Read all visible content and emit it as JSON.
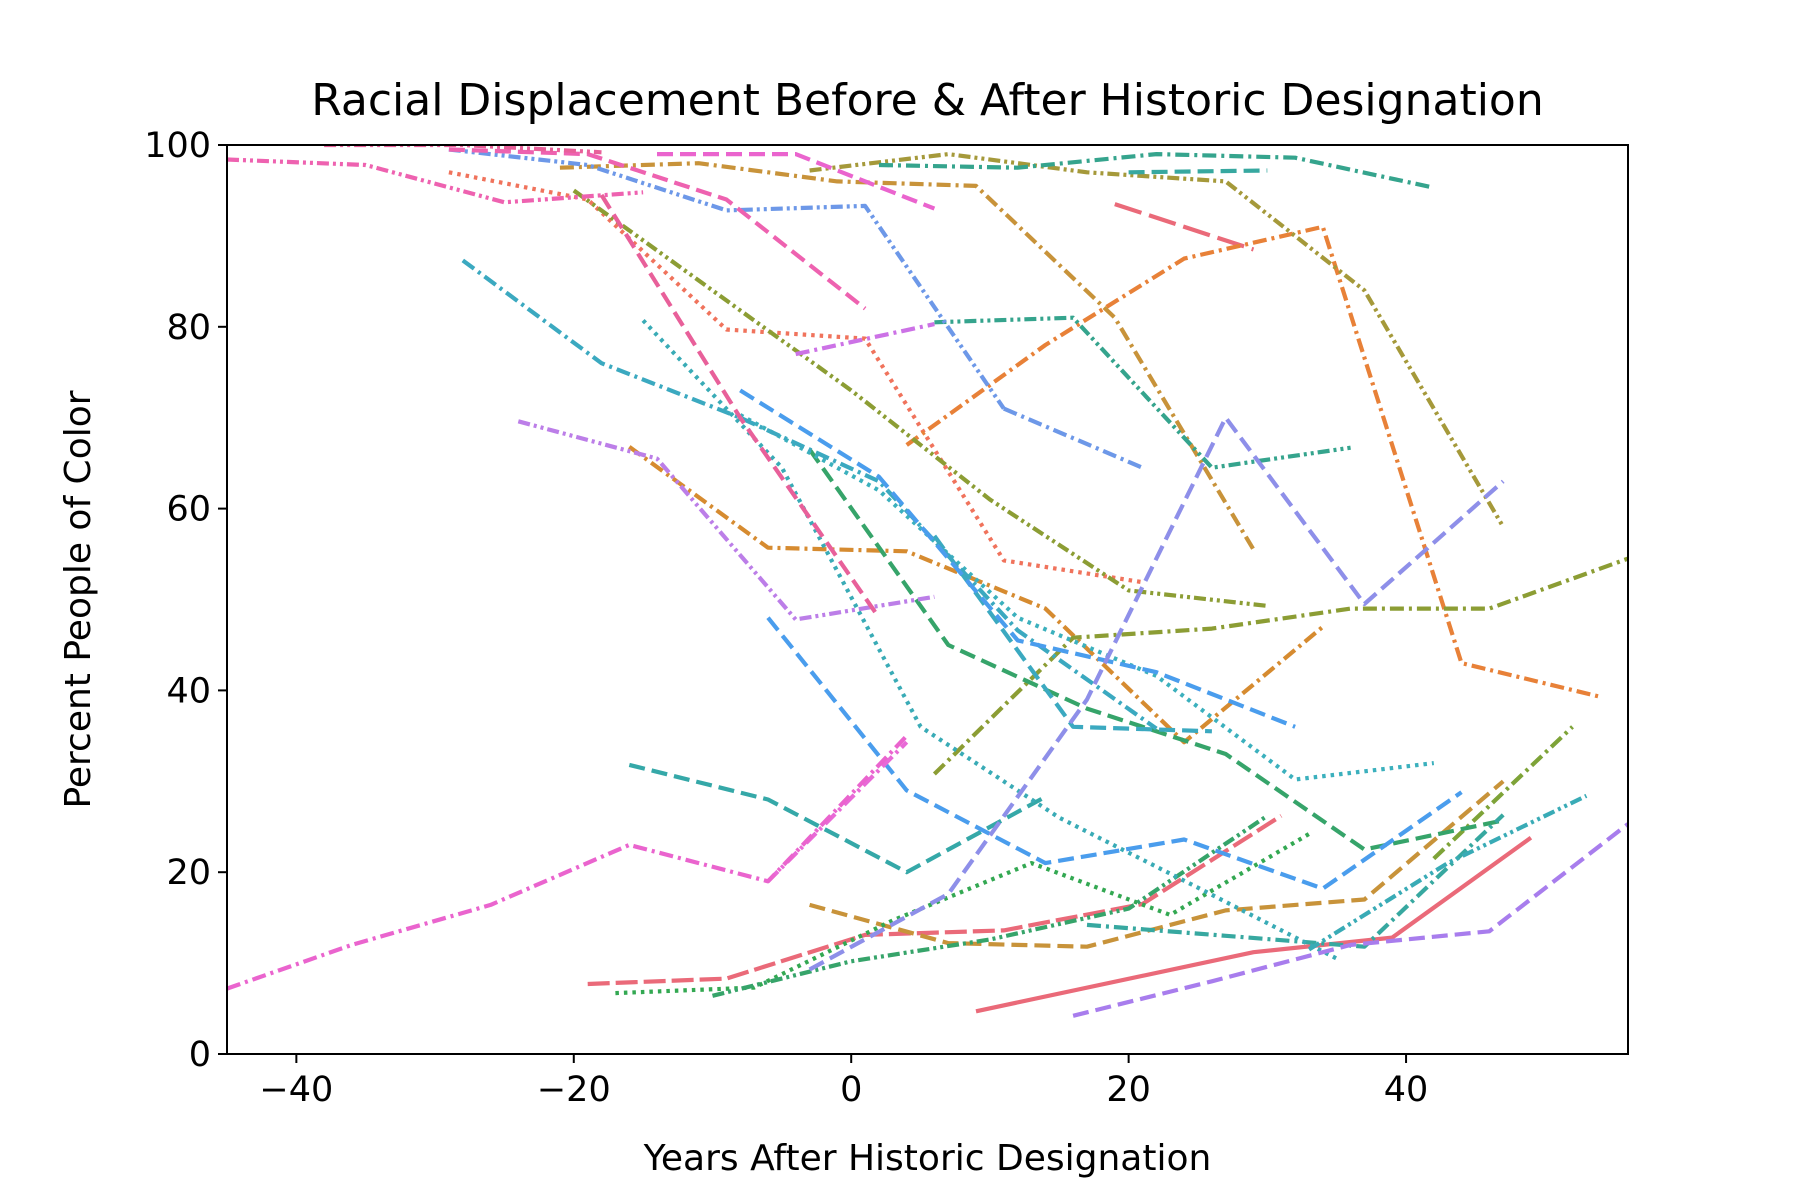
{
  "chart_data": {
    "type": "line",
    "title": "Racial Displacement Before & After Historic Designation",
    "xlabel": "Years After Historic Designation",
    "ylabel": "Percent People of Color",
    "xlim": [
      -45,
      56
    ],
    "ylim": [
      0,
      100
    ],
    "xticks": [
      -40,
      -20,
      0,
      20,
      40
    ],
    "xtick_labels": [
      "−40",
      "−20",
      "0",
      "20",
      "40"
    ],
    "yticks": [
      0,
      20,
      40,
      60,
      80,
      100
    ],
    "ytick_labels": [
      "0",
      "20",
      "40",
      "60",
      "80",
      "100"
    ],
    "grid": false,
    "legend": "none",
    "series": [
      {
        "color": "#ea6a79",
        "dash": "solid",
        "x": [
          9,
          29,
          39,
          49
        ],
        "y": [
          4.7,
          11.2,
          12.8,
          23.8
        ]
      },
      {
        "color": "#ea6a79",
        "dash": "long",
        "x": [
          -19,
          -9,
          1,
          11,
          21,
          31
        ],
        "y": [
          7.7,
          8.3,
          13.1,
          13.6,
          16.5,
          26.2
        ]
      },
      {
        "color": "#ea6a79",
        "dash": "longdash",
        "x": [
          19,
          29
        ],
        "y": [
          93.5,
          88.5
        ]
      },
      {
        "color": "#f0735c",
        "dash": "dot",
        "x": [
          -29,
          -19,
          -9,
          1,
          11,
          21
        ],
        "y": [
          97.0,
          94.0,
          79.7,
          78.7,
          54.3,
          51.9
        ]
      },
      {
        "color": "#e88138",
        "dash": "dashdot",
        "x": [
          4,
          14,
          24,
          34,
          44,
          54
        ],
        "y": [
          67.0,
          78.0,
          87.5,
          91.0,
          43.0,
          39.3
        ]
      },
      {
        "color": "#d68b30",
        "dash": "dashdot",
        "x": [
          -16,
          -6,
          4,
          14,
          24,
          34
        ],
        "y": [
          66.8,
          55.7,
          55.3,
          49.0,
          34.3,
          47.0
        ]
      },
      {
        "color": "#c8933a",
        "dash": "dash",
        "x": [
          -3,
          7,
          17,
          27,
          37,
          47
        ],
        "y": [
          16.4,
          12.2,
          11.8,
          15.8,
          17.0,
          30.0
        ]
      },
      {
        "color": "#c8933a",
        "dash": "dashdot",
        "x": [
          -21,
          -11,
          -1,
          9,
          19,
          29
        ],
        "y": [
          97.5,
          98.0,
          96.0,
          95.5,
          81.0,
          55.5
        ]
      },
      {
        "color": "#a5993a",
        "dash": "dashdotdot",
        "x": [
          -3,
          7,
          17,
          27,
          37,
          47
        ],
        "y": [
          97.2,
          99.0,
          97.0,
          96.0,
          84.0,
          58.0
        ]
      },
      {
        "color": "#8c9d34",
        "dash": "dashdot",
        "x": [
          6,
          16,
          26,
          36,
          46,
          56
        ],
        "y": [
          30.8,
          45.8,
          46.8,
          49.0,
          49.0,
          54.5
        ]
      },
      {
        "color": "#8c9d34",
        "dash": "dashdotdot",
        "x": [
          -20,
          -10,
          0,
          10,
          20,
          30
        ],
        "y": [
          95.0,
          84.0,
          73.0,
          61.0,
          51.0,
          49.3
        ]
      },
      {
        "color": "#7ea338",
        "dash": "dashdot",
        "x": [
          42,
          52
        ],
        "y": [
          21.5,
          36.0
        ]
      },
      {
        "color": "#33a852",
        "dash": "dot",
        "x": [
          -17,
          -7,
          3,
          13,
          23,
          33
        ],
        "y": [
          6.7,
          7.3,
          14.7,
          21.0,
          15.3,
          24.2
        ]
      },
      {
        "color": "#36a46a",
        "dash": "dash",
        "x": [
          -3,
          7,
          17,
          27,
          37,
          47
        ],
        "y": [
          66.5,
          45.0,
          38.0,
          33.0,
          22.5,
          25.7
        ]
      },
      {
        "color": "#36a46a",
        "dash": "dashdotdot",
        "x": [
          -10,
          0,
          10,
          20,
          30
        ],
        "y": [
          6.4,
          10.2,
          12.6,
          16.0,
          26.2
        ]
      },
      {
        "color": "#35a48d",
        "dash": "dashdot",
        "x": [
          2,
          12,
          22,
          32,
          42
        ],
        "y": [
          97.8,
          97.5,
          99.0,
          98.6,
          95.3
        ]
      },
      {
        "color": "#35a48d",
        "dash": "dashdotdot",
        "x": [
          6,
          16,
          26,
          36
        ],
        "y": [
          80.5,
          81.0,
          64.5,
          66.7
        ]
      },
      {
        "color": "#37a8a0",
        "dash": "dashdot",
        "x": [
          17,
          27,
          37,
          47
        ],
        "y": [
          14.2,
          13.0,
          11.8,
          26.3
        ]
      },
      {
        "color": "#37a8a0",
        "dash": "dash",
        "x": [
          20,
          30
        ],
        "y": [
          97.0,
          97.2
        ]
      },
      {
        "color": "#35a8a8",
        "dash": "dash",
        "x": [
          -16,
          -6,
          4,
          14
        ],
        "y": [
          31.8,
          28.0,
          20.0,
          28.3
        ]
      },
      {
        "color": "#39abb6",
        "dash": "dot",
        "x": [
          -15,
          -5,
          5,
          15,
          25,
          35
        ],
        "y": [
          80.7,
          64.5,
          36.0,
          26.0,
          18.3,
          10.5
        ]
      },
      {
        "color": "#39abb6",
        "dash": "dashdotdot",
        "x": [
          33,
          43,
          53
        ],
        "y": [
          11.5,
          21.0,
          28.4
        ]
      },
      {
        "color": "#3bb0bd",
        "dash": "dot",
        "x": [
          -8,
          2,
          12,
          22,
          32,
          42
        ],
        "y": [
          70.3,
          62.0,
          48.0,
          41.6,
          30.2,
          32.0
        ]
      },
      {
        "color": "#3ba9c0",
        "dash": "dashdot",
        "x": [
          -28,
          -18,
          -8,
          2,
          12,
          22
        ],
        "y": [
          87.3,
          76.0,
          70.0,
          63.0,
          46.6,
          35.8
        ]
      },
      {
        "color": "#3ba9c0",
        "dash": "dash",
        "x": [
          6,
          16,
          26
        ],
        "y": [
          57.0,
          36.0,
          35.5
        ]
      },
      {
        "color": "#4a9ded",
        "dash": "dash",
        "x": [
          -6,
          4,
          14,
          24,
          34,
          44
        ],
        "y": [
          48.0,
          29.0,
          21.0,
          23.6,
          18.2,
          28.8
        ]
      },
      {
        "color": "#4a9ded",
        "dash": "dash",
        "x": [
          -8,
          2,
          12,
          22,
          32
        ],
        "y": [
          73.0,
          63.5,
          45.5,
          42.0,
          36.0
        ]
      },
      {
        "color": "#6d98e8",
        "dash": "dashdotdot",
        "x": [
          -29,
          -19,
          -9,
          1,
          11
        ],
        "y": [
          99.5,
          97.8,
          92.8,
          93.3,
          71.0
        ]
      },
      {
        "color": "#6d98e8",
        "dash": "dashdot",
        "x": [
          11,
          21
        ],
        "y": [
          71.0,
          64.5
        ]
      },
      {
        "color": "#8e8fe9",
        "dash": "dash",
        "x": [
          -3,
          7,
          17,
          27,
          37,
          47
        ],
        "y": [
          9.3,
          17.6,
          39.0,
          70.0,
          49.5,
          63.0
        ]
      },
      {
        "color": "#a87ded",
        "dash": "dash",
        "x": [
          16,
          26,
          36,
          46,
          56
        ],
        "y": [
          4.2,
          8.0,
          12.0,
          13.5,
          25.3
        ]
      },
      {
        "color": "#bc7ee8",
        "dash": "dashdotdot",
        "x": [
          -24,
          -14,
          -4,
          6
        ],
        "y": [
          69.6,
          65.5,
          47.8,
          50.3
        ]
      },
      {
        "color": "#cc72e6",
        "dash": "dashdot",
        "x": [
          -4,
          6
        ],
        "y": [
          77.0,
          80.3
        ]
      },
      {
        "color": "#e86ad7",
        "dash": "dashdot",
        "x": [
          -6,
          4
        ],
        "y": [
          19.0,
          34.3
        ]
      },
      {
        "color": "#ea64ce",
        "dash": "dashdot",
        "x": [
          -45,
          -36,
          -26,
          -16,
          -6,
          4
        ],
        "y": [
          7.2,
          12.0,
          16.4,
          23.0,
          19.0,
          35.0
        ]
      },
      {
        "color": "#ea64ce",
        "dash": "dash",
        "x": [
          -14,
          -4,
          6
        ],
        "y": [
          99.0,
          99.0,
          93.0
        ]
      },
      {
        "color": "#ee62b0",
        "dash": "dash",
        "x": [
          -29,
          -19,
          -9,
          1
        ],
        "y": [
          99.5,
          99.0,
          94.0,
          82.0
        ]
      },
      {
        "color": "#ee62b0",
        "dash": "dashdotdot",
        "x": [
          -45,
          -35,
          -25,
          -15
        ],
        "y": [
          98.4,
          97.8,
          93.7,
          94.8
        ]
      },
      {
        "color": "#e8609a",
        "dash": "dash",
        "x": [
          -18,
          -8,
          2
        ],
        "y": [
          94.5,
          70.0,
          48.0
        ]
      },
      {
        "color": "#e8609a",
        "dash": "dashdotdot",
        "x": [
          -38,
          -28,
          -18
        ],
        "y": [
          100.0,
          100.0,
          99.2
        ]
      }
    ]
  }
}
